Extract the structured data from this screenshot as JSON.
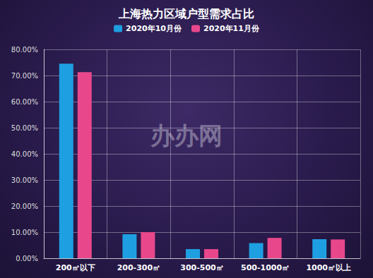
{
  "chart_data": {
    "type": "bar",
    "title": "上海热力区域户型需求占比",
    "categories": [
      "200㎡以下",
      "200-300㎡",
      "300-500㎡",
      "500-1000㎡",
      "1000㎡以上"
    ],
    "series": [
      {
        "name": "2020年10月份",
        "color": "#1e9fe2",
        "values": [
          74.5,
          9.2,
          3.5,
          5.8,
          7.3
        ]
      },
      {
        "name": "2020年11月份",
        "color": "#e8478c",
        "values": [
          71.3,
          10.0,
          3.5,
          7.8,
          7.2
        ]
      }
    ],
    "ylim": [
      0,
      80
    ],
    "yticks": [
      {
        "value": 0,
        "label": "0.00%"
      },
      {
        "value": 10,
        "label": "10.00%"
      },
      {
        "value": 20,
        "label": "20.00%"
      },
      {
        "value": 30,
        "label": "30.00%"
      },
      {
        "value": 40,
        "label": "40.00%"
      },
      {
        "value": 50,
        "label": "50.00%"
      },
      {
        "value": 60,
        "label": "60.00%"
      },
      {
        "value": 70,
        "label": "70.00%"
      },
      {
        "value": 80,
        "label": "80.00%"
      }
    ],
    "grid": true,
    "legend": "top",
    "annotations": [
      "办办网"
    ]
  }
}
